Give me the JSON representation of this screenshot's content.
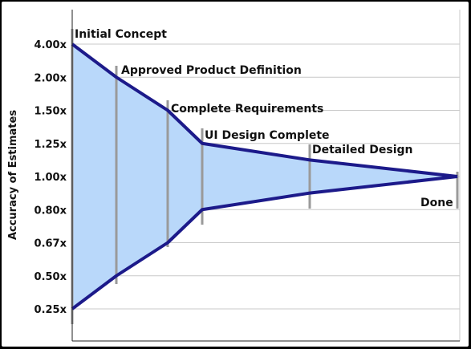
{
  "chart_data": {
    "type": "area",
    "title": "",
    "xlabel": "",
    "ylabel": "Accuracy of Estimates",
    "y_ticks": [
      "4.00x",
      "2.00x",
      "1.50x",
      "1.25x",
      "1.00x",
      "0.80x",
      "0.67x",
      "0.50x",
      "0.25x"
    ],
    "grid": true,
    "series": [
      {
        "values": [
          "4.00x",
          "2.00x",
          "1.50x",
          "1.25x",
          "1.125x",
          "1.00x"
        ]
      },
      {
        "values": [
          "0.25x",
          "0.50x",
          "0.67x",
          "0.80x",
          "0.90x",
          "1.00x"
        ]
      }
    ],
    "milestones": [
      {
        "label": "Initial Concept"
      },
      {
        "label": "Approved Product Definition"
      },
      {
        "label": "Complete Requirements"
      },
      {
        "label": "UI Design Complete"
      },
      {
        "label": "Detailed Design"
      },
      {
        "label": "Done"
      }
    ],
    "colors": {
      "fill": "#b9d8fa",
      "line": "#1c1a8a",
      "marker": "#9a9a9a",
      "grid": "#c8c8c8",
      "background": "#ffffff",
      "frame": "#000000"
    }
  }
}
